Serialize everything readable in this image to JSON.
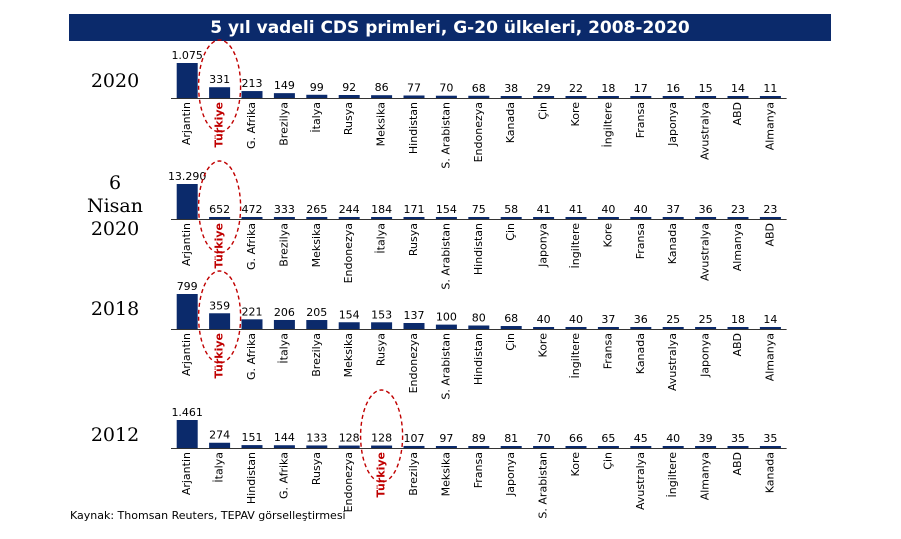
{
  "title": "5 yıl vadeli CDS primleri, G-20 ülkeleri, 2008-2020",
  "source": "Kaynak: Thomsan Reuters, TEPAV görselleştirmesi",
  "colors": {
    "title_bg": "#0b2a6b",
    "bar": "#0b2a6b",
    "highlight": "#c00000"
  },
  "highlight_label": "Türkiye",
  "chart_data": [
    {
      "type": "bar",
      "period_label": [
        "2020"
      ],
      "categories": [
        "Arjantin",
        "Türkiye",
        "G. Afrika",
        "Brezilya",
        "İtalya",
        "Rusya",
        "Meksika",
        "Hindistan",
        "S. Arabistan",
        "Endonezya",
        "Kanada",
        "Çin",
        "Kore",
        "İngiltere",
        "Fransa",
        "Japonya",
        "Avustralya",
        "ABD",
        "Almanya"
      ],
      "values": [
        1075,
        331,
        213,
        149,
        99,
        92,
        86,
        77,
        70,
        68,
        38,
        29,
        22,
        18,
        17,
        16,
        15,
        14,
        11
      ],
      "labels": [
        "1.075",
        "331",
        "213",
        "149",
        "99",
        "92",
        "86",
        "77",
        "70",
        "68",
        "38",
        "29",
        "22",
        "18",
        "17",
        "16",
        "15",
        "14",
        "11"
      ]
    },
    {
      "type": "bar",
      "period_label": [
        "6",
        "Nisan",
        "2020"
      ],
      "categories": [
        "Arjantin",
        "Türkiye",
        "G. Afrika",
        "Brezilya",
        "Meksika",
        "Endonezya",
        "İtalya",
        "Rusya",
        "S. Arabistan",
        "Hindistan",
        "Çin",
        "Japonya",
        "İngiltere",
        "Kore",
        "Fransa",
        "Kanada",
        "Avustralya",
        "Almanya",
        "ABD"
      ],
      "values": [
        13290,
        652,
        472,
        333,
        265,
        244,
        184,
        171,
        154,
        75,
        58,
        41,
        41,
        40,
        40,
        37,
        36,
        23,
        23
      ],
      "labels": [
        "13.290",
        "652",
        "472",
        "333",
        "265",
        "244",
        "184",
        "171",
        "154",
        "75",
        "58",
        "41",
        "41",
        "40",
        "40",
        "37",
        "36",
        "23",
        "23"
      ]
    },
    {
      "type": "bar",
      "period_label": [
        "2018"
      ],
      "categories": [
        "Arjantin",
        "Türkiye",
        "G. Afrika",
        "İtalya",
        "Brezilya",
        "Meksika",
        "Rusya",
        "Endonezya",
        "S. Arabistan",
        "Hindistan",
        "Çin",
        "Kore",
        "İngiltere",
        "Fransa",
        "Kanada",
        "Avustralya",
        "Japonya",
        "ABD",
        "Almanya"
      ],
      "values": [
        799,
        359,
        221,
        206,
        205,
        154,
        153,
        137,
        100,
        80,
        68,
        40,
        40,
        37,
        36,
        25,
        25,
        18,
        14
      ],
      "labels": [
        "799",
        "359",
        "221",
        "206",
        "205",
        "154",
        "153",
        "137",
        "100",
        "80",
        "68",
        "40",
        "40",
        "37",
        "36",
        "25",
        "25",
        "18",
        "14"
      ]
    },
    {
      "type": "bar",
      "period_label": [
        "2012"
      ],
      "categories": [
        "Arjantin",
        "İtalya",
        "Hindistan",
        "G. Afrika",
        "Rusya",
        "Endonezya",
        "Türkiye",
        "Brezilya",
        "Meksika",
        "Fransa",
        "Japonya",
        "S. Arabistan",
        "Kore",
        "Çin",
        "Avustralya",
        "İngiltere",
        "Almanya",
        "ABD",
        "Kanada"
      ],
      "values": [
        1461,
        274,
        151,
        144,
        133,
        128,
        128,
        107,
        97,
        89,
        81,
        70,
        66,
        65,
        45,
        40,
        39,
        35,
        35
      ],
      "labels": [
        "1.461",
        "274",
        "151",
        "144",
        "133",
        "128",
        "128",
        "107",
        "97",
        "89",
        "81",
        "70",
        "66",
        "65",
        "45",
        "40",
        "39",
        "35",
        "35"
      ]
    }
  ]
}
